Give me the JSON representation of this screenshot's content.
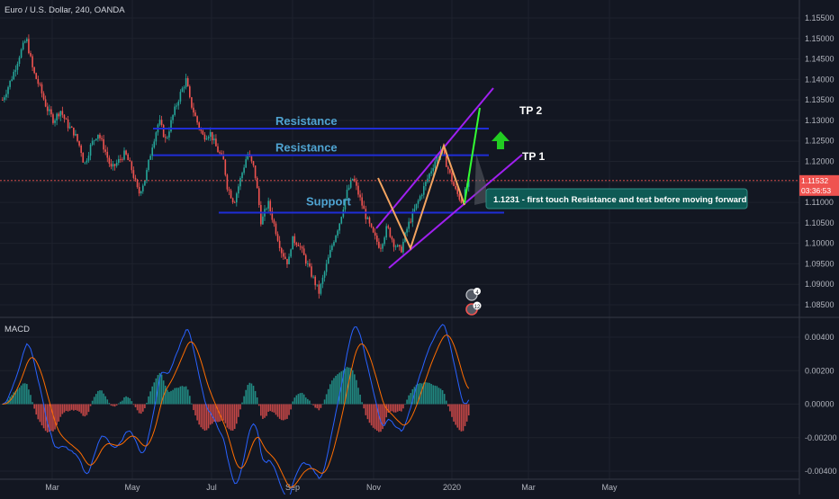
{
  "chart_data": {
    "type": "candlestick",
    "title": "Euro / U.S. Dollar, 240, OANDA",
    "price_axis": {
      "ticks": [
        "1.15500",
        "1.15000",
        "1.14500",
        "1.14000",
        "1.13500",
        "1.13000",
        "1.12500",
        "1.12000",
        "1.11500",
        "1.11000",
        "1.10500",
        "1.10000",
        "1.09500",
        "1.09000",
        "1.08500"
      ],
      "ylim": [
        1.0825,
        1.158
      ]
    },
    "current_price": "1.11532",
    "countdown": "03:36:53",
    "time_axis": {
      "ticks": [
        "Mar",
        "May",
        "Jul",
        "Sep",
        "Nov",
        "2020",
        "Mar",
        "May"
      ]
    },
    "price_path": [
      [
        0,
        1.135
      ],
      [
        3,
        1.141
      ],
      [
        5,
        1.146
      ],
      [
        7,
        1.15
      ],
      [
        9,
        1.142
      ],
      [
        11,
        1.138
      ],
      [
        13,
        1.133
      ],
      [
        15,
        1.13
      ],
      [
        17,
        1.1325
      ],
      [
        19,
        1.129
      ],
      [
        21,
        1.127
      ],
      [
        23,
        1.123
      ],
      [
        24,
        1.119
      ],
      [
        26,
        1.124
      ],
      [
        28,
        1.127
      ],
      [
        30,
        1.123
      ],
      [
        32,
        1.118
      ],
      [
        34,
        1.12
      ],
      [
        36,
        1.122
      ],
      [
        38,
        1.118
      ],
      [
        40,
        1.112
      ],
      [
        42,
        1.116
      ],
      [
        44,
        1.124
      ],
      [
        46,
        1.13
      ],
      [
        48,
        1.125
      ],
      [
        50,
        1.131
      ],
      [
        52,
        1.136
      ],
      [
        54,
        1.14
      ],
      [
        55,
        1.135
      ],
      [
        57,
        1.13
      ],
      [
        59,
        1.126
      ],
      [
        61,
        1.127
      ],
      [
        63,
        1.123
      ],
      [
        65,
        1.12
      ],
      [
        66,
        1.114
      ],
      [
        68,
        1.11
      ],
      [
        70,
        1.116
      ],
      [
        72,
        1.122
      ],
      [
        74,
        1.118
      ],
      [
        75,
        1.112
      ],
      [
        76,
        1.105
      ],
      [
        78,
        1.11
      ],
      [
        80,
        1.104
      ],
      [
        82,
        1.098
      ],
      [
        84,
        1.095
      ],
      [
        85,
        1.101
      ],
      [
        87,
        1.1
      ],
      [
        89,
        1.096
      ],
      [
        91,
        1.092
      ],
      [
        93,
        1.088
      ],
      [
        95,
        1.094
      ],
      [
        97,
        1.1
      ],
      [
        99,
        1.105
      ],
      [
        101,
        1.112
      ],
      [
        103,
        1.116
      ],
      [
        105,
        1.111
      ],
      [
        107,
        1.106
      ],
      [
        109,
        1.102
      ],
      [
        111,
        1.099
      ],
      [
        113,
        1.104
      ],
      [
        115,
        1.1
      ],
      [
        117,
        1.098
      ],
      [
        119,
        1.104
      ],
      [
        121,
        1.108
      ],
      [
        123,
        1.112
      ],
      [
        125,
        1.116
      ],
      [
        127,
        1.12
      ],
      [
        129,
        1.123
      ],
      [
        131,
        1.118
      ],
      [
        133,
        1.113
      ],
      [
        135,
        1.11
      ],
      [
        137,
        1.1153
      ]
    ],
    "macd": {
      "label": "MACD",
      "ticks": [
        "0.00400",
        "0.00200",
        "0.00000",
        "-0.00200",
        "-0.00400"
      ],
      "ylim": [
        -0.0042,
        0.0042
      ]
    },
    "levels": [
      {
        "label": "Resistance",
        "price": 1.128
      },
      {
        "label": "Resistance",
        "price": 1.1215
      },
      {
        "label": "Support",
        "price": 1.1075
      }
    ],
    "targets": [
      {
        "label": "TP 2",
        "price": 1.1325
      },
      {
        "label": "TP 1",
        "price": 1.121
      }
    ],
    "annotation": "1.1231 - first touch Resistance and test before moving forward",
    "badges": [
      "4",
      "12"
    ]
  },
  "colors": {
    "background": "#131722",
    "grid": "#1e222d",
    "up": "#26a69a",
    "down": "#ef5350",
    "level": "#1f2dd6",
    "channel": "#a020f0",
    "wave": "#f4a460",
    "projection": "#33ff33",
    "macd_line": "#2962ff",
    "signal_line": "#ff6d00",
    "label": "#4fa3d1",
    "callout": "#0e5a55"
  }
}
